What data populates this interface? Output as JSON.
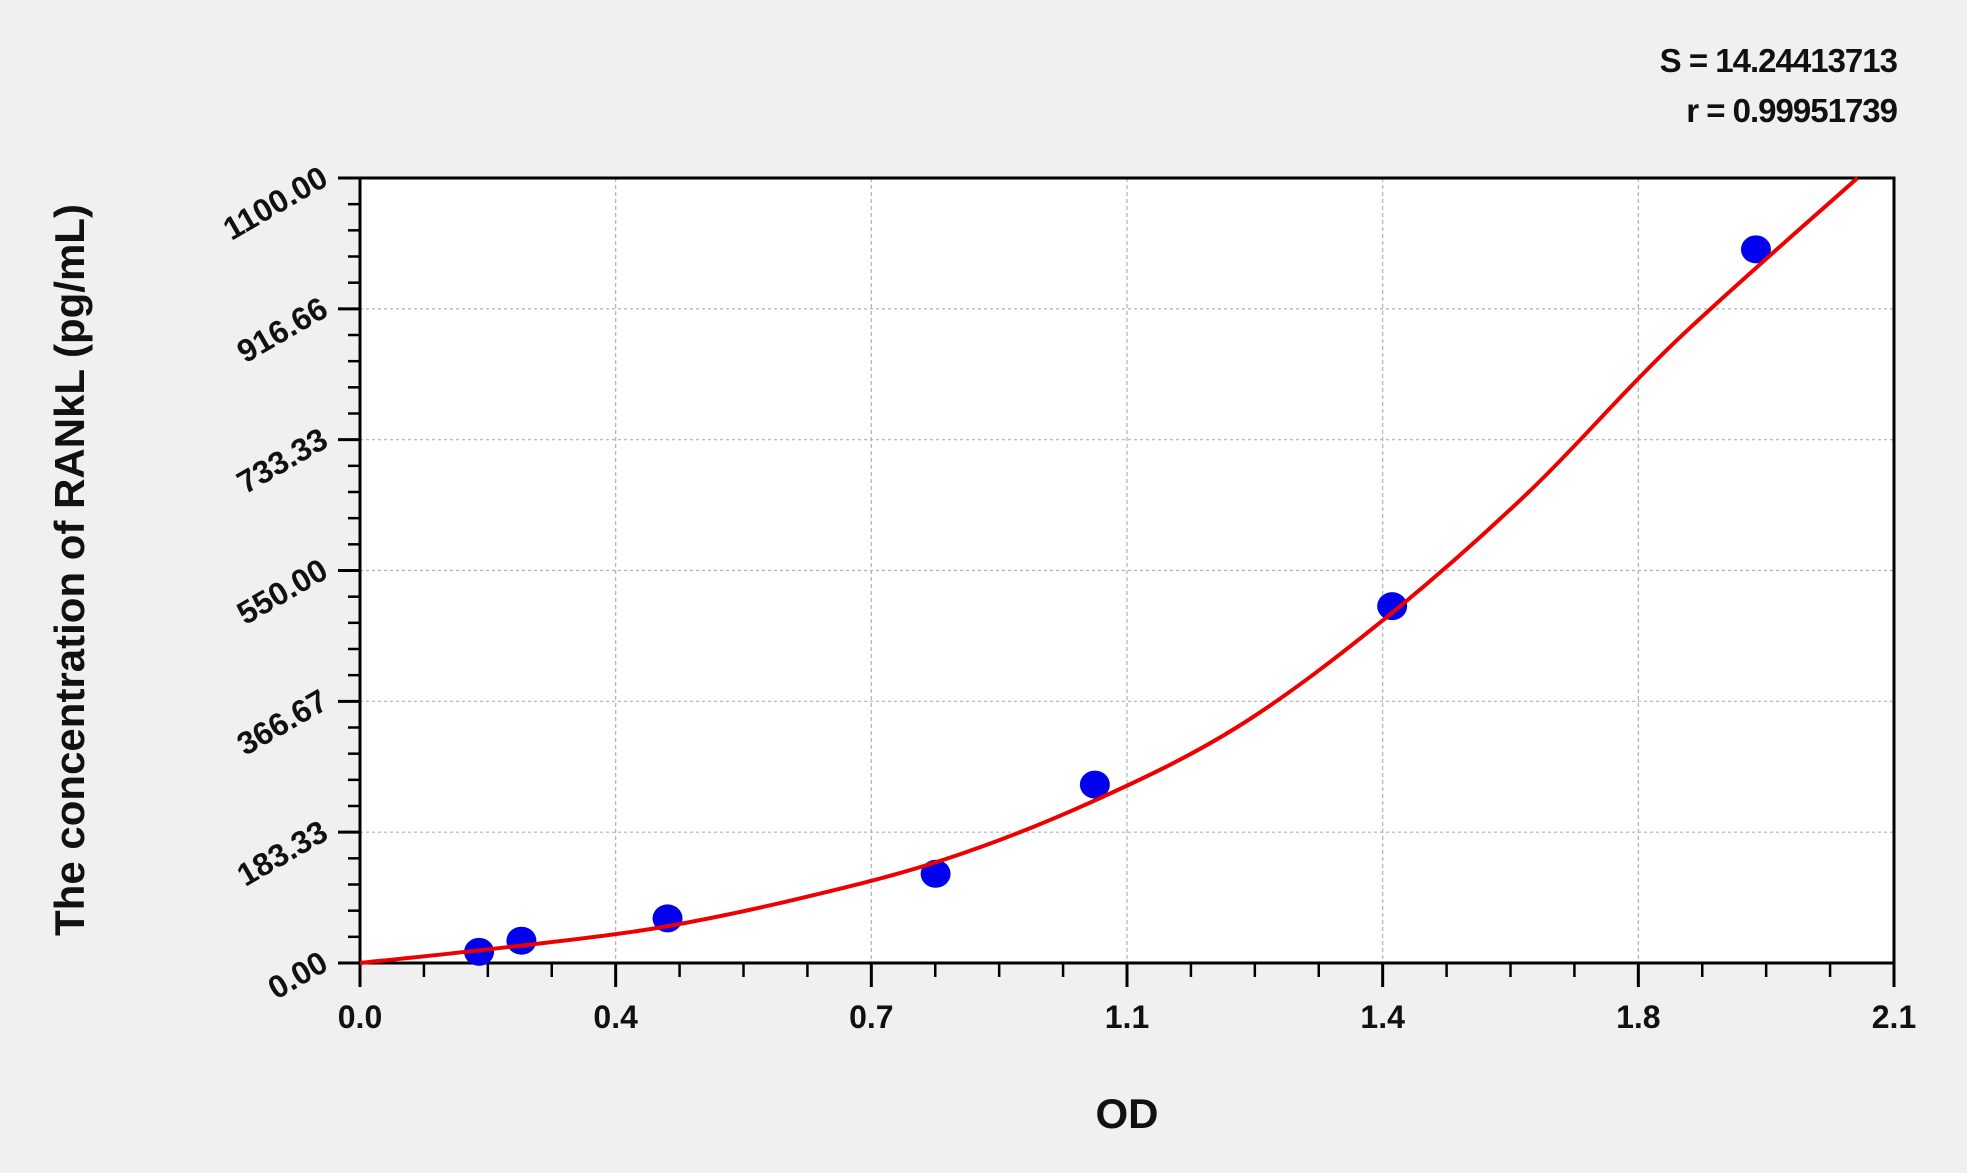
{
  "chart_data": {
    "type": "scatter",
    "xlabel": "OD",
    "ylabel": "The concentration of  RANkL  (pg/mL)",
    "xlim": [
      0.0,
      2.1
    ],
    "ylim": [
      0.0,
      1100.0
    ],
    "x_ticks": [
      0.0,
      0.35,
      0.7,
      1.05,
      1.4,
      1.75,
      2.1
    ],
    "x_tick_labels": [
      "0.0",
      "0.4",
      "0.7",
      "1.1",
      "1.4",
      "1.8",
      "2.1"
    ],
    "y_ticks": [
      0,
      183.33,
      366.67,
      550,
      733.33,
      916.66,
      1100
    ],
    "y_tick_labels": [
      "0.00",
      "183.33",
      "366.67",
      "550.00",
      "733.33",
      "916.66",
      "1100.00"
    ],
    "grid": true,
    "stats": {
      "s": "S = 14.24413713",
      "r": "r = 0.99951739"
    },
    "points": [
      {
        "x": 0.163,
        "y": 15.6
      },
      {
        "x": 0.221,
        "y": 31.25
      },
      {
        "x": 0.421,
        "y": 62.5
      },
      {
        "x": 0.788,
        "y": 125
      },
      {
        "x": 1.006,
        "y": 250
      },
      {
        "x": 1.413,
        "y": 500
      },
      {
        "x": 1.911,
        "y": 1000
      }
    ],
    "fit_curve": [
      [
        0,
        0
      ],
      [
        0.2,
        22
      ],
      [
        0.4,
        48
      ],
      [
        0.6,
        90
      ],
      [
        0.8,
        145
      ],
      [
        1.0,
        225
      ],
      [
        1.2,
        330
      ],
      [
        1.4,
        480
      ],
      [
        1.6,
        660
      ],
      [
        1.8,
        870
      ],
      [
        2.05,
        1100
      ]
    ],
    "colors": {
      "points": "#0000ee",
      "curve": "#ee0000",
      "grid": "#b0b0b0",
      "background": "#f0f0f0"
    }
  }
}
